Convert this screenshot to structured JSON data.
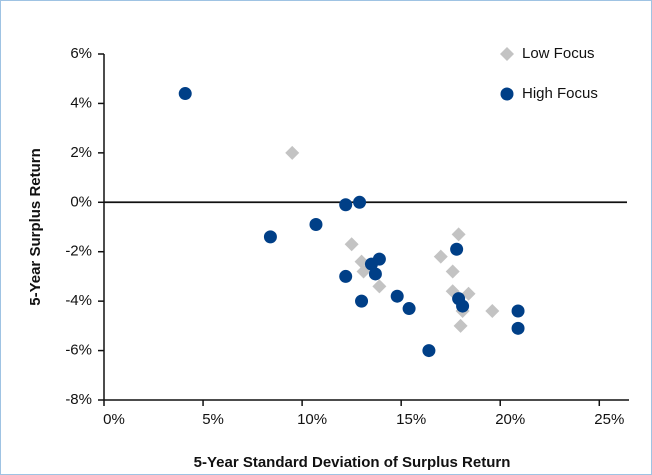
{
  "chart_data": {
    "type": "scatter",
    "xlabel": "5-Year Standard Deviation of Surplus Return",
    "ylabel": "5-Year Surplus Return",
    "xlim": [
      0,
      26.5
    ],
    "ylim": [
      -8,
      6
    ],
    "xticks": [
      {
        "value": 0,
        "label": "0%"
      },
      {
        "value": 5,
        "label": "5%"
      },
      {
        "value": 10,
        "label": "10%"
      },
      {
        "value": 15,
        "label": "15%"
      },
      {
        "value": 20,
        "label": "20%"
      },
      {
        "value": 25,
        "label": "25%"
      }
    ],
    "yticks": [
      {
        "value": 6,
        "label": "6%"
      },
      {
        "value": 4,
        "label": "4%"
      },
      {
        "value": 2,
        "label": "2%"
      },
      {
        "value": 0,
        "label": "0%"
      },
      {
        "value": -2,
        "label": "-2%"
      },
      {
        "value": -4,
        "label": "-4%"
      },
      {
        "value": -6,
        "label": "-6%"
      },
      {
        "value": -8,
        "label": "-8%"
      }
    ],
    "legend": "top-right",
    "series": [
      {
        "name": "Low Focus",
        "color": "#c3c3c3",
        "marker": "diamond",
        "x": [
          9.5,
          12.5,
          13.0,
          13.1,
          13.9,
          17.0,
          17.6,
          17.9,
          17.6,
          18.1,
          18.0,
          18.4,
          19.6
        ],
        "values": [
          2.0,
          -1.7,
          -2.4,
          -2.8,
          -3.4,
          -2.2,
          -2.8,
          -1.3,
          -3.6,
          -4.4,
          -5.0,
          -3.7,
          -4.4
        ]
      },
      {
        "name": "High Focus",
        "color": "#003f87",
        "marker": "circle",
        "x": [
          4.1,
          8.4,
          10.7,
          12.2,
          12.9,
          12.2,
          13.0,
          13.5,
          13.9,
          13.7,
          14.8,
          15.4,
          16.4,
          17.8,
          17.9,
          18.1,
          20.9,
          20.9
        ],
        "values": [
          4.4,
          -1.4,
          -0.9,
          -0.1,
          0.0,
          -3.0,
          -4.0,
          -2.5,
          -2.3,
          -2.9,
          -3.8,
          -4.3,
          -6.0,
          -1.9,
          -3.9,
          -4.2,
          -4.4,
          -5.1
        ]
      }
    ]
  }
}
